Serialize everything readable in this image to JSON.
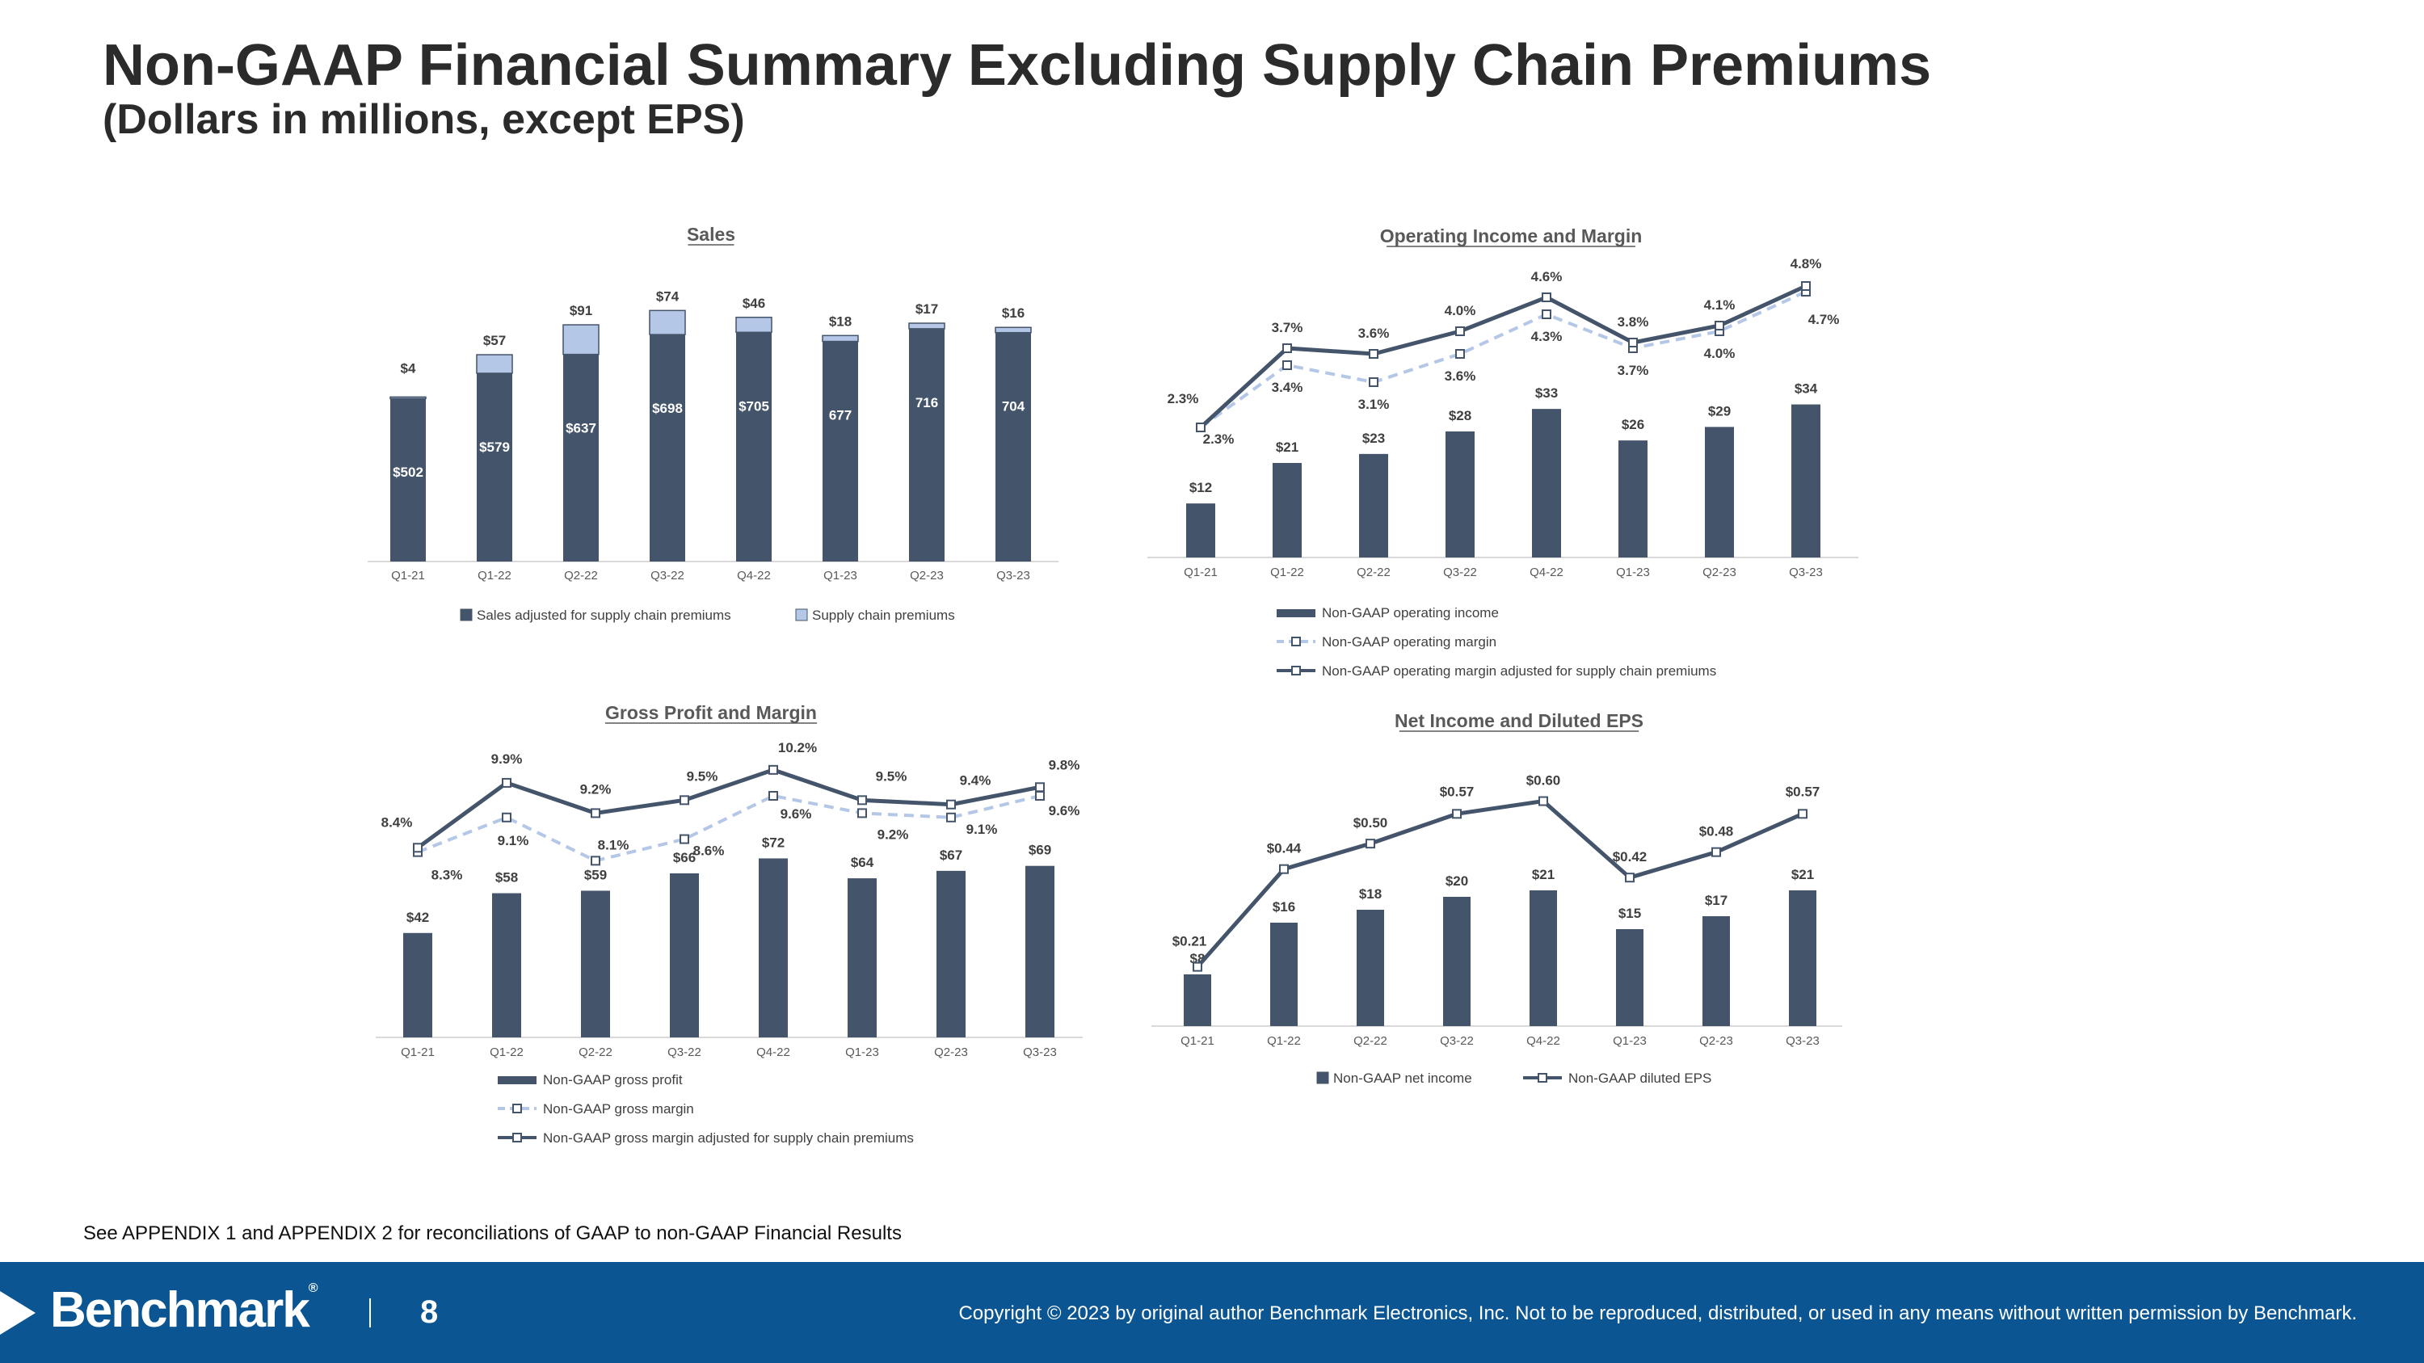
{
  "page": {
    "title": "Non-GAAP Financial Summary Excluding Supply Chain Premiums",
    "subtitle": "(Dollars in millions, except EPS)",
    "footnote": "See APPENDIX 1 and APPENDIX 2 for reconciliations of GAAP to non-GAAP Financial Results",
    "footer": {
      "logo": "Benchmark",
      "logo_mark": "®",
      "page_number": "8",
      "copyright": "Copyright © 2023 by original author Benchmark Electronics, Inc. Not to be reproduced, distributed, or used in any means without written permission by Benchmark."
    },
    "colors": {
      "navy": "#44546a",
      "light_blue": "#b4c7e7",
      "footer_blue": "#0b5592"
    }
  },
  "chart_data": [
    {
      "id": "sales",
      "type": "bar",
      "stacked": true,
      "title": "Sales",
      "categories": [
        "Q1-21",
        "Q1-22",
        "Q2-22",
        "Q3-22",
        "Q4-22",
        "Q1-23",
        "Q2-23",
        "Q3-23"
      ],
      "series": [
        {
          "name": "Sales adjusted for supply chain premiums",
          "values": [
            502,
            579,
            637,
            698,
            705,
            677,
            716,
            704
          ],
          "labels": [
            "$502",
            "$579",
            "$637",
            "$698",
            "$705",
            "677",
            "716",
            "704"
          ],
          "color": "#44546a"
        },
        {
          "name": "Supply chain premiums",
          "values": [
            4,
            57,
            91,
            74,
            46,
            18,
            17,
            16
          ],
          "labels": [
            "$4",
            "$57",
            "$91",
            "$74",
            "$46",
            "$18",
            "$17",
            "$16"
          ],
          "color": "#b4c7e7"
        }
      ],
      "ylim": [
        0,
        820
      ],
      "legend": "bottom"
    },
    {
      "id": "opinc",
      "type": "bar+line",
      "title": "Operating Income and Margin",
      "categories": [
        "Q1-21",
        "Q1-22",
        "Q2-22",
        "Q3-22",
        "Q4-22",
        "Q1-23",
        "Q2-23",
        "Q3-23"
      ],
      "bars": {
        "name": "Non-GAAP operating income",
        "values": [
          12,
          21,
          23,
          28,
          33,
          26,
          29,
          34
        ],
        "labels": [
          "$12",
          "$21",
          "$23",
          "$28",
          "$33",
          "$26",
          "$29",
          "$34"
        ]
      },
      "lines": [
        {
          "name": "Non-GAAP operating margin",
          "values": [
            2.3,
            3.4,
            3.1,
            3.6,
            4.3,
            3.7,
            4.0,
            4.7
          ],
          "labels": [
            "2.3%",
            "3.4%",
            "3.1%",
            "3.6%",
            "4.3%",
            "3.7%",
            "4.0%",
            "4.7%"
          ],
          "style": "dashed"
        },
        {
          "name": "Non-GAAP operating margin adjusted for supply chain premiums",
          "values": [
            2.3,
            3.7,
            3.6,
            4.0,
            4.6,
            3.8,
            4.1,
            4.8
          ],
          "labels": [
            "2.3%",
            "3.7%",
            "3.6%",
            "4.0%",
            "4.6%",
            "3.8%",
            "4.1%",
            "4.8%"
          ],
          "style": "solid"
        }
      ],
      "bar_ylim": [
        0,
        70
      ],
      "line_ylim": [
        0,
        5
      ],
      "legend": "bottom"
    },
    {
      "id": "gross",
      "type": "bar+line",
      "title": "Gross Profit and Margin",
      "categories": [
        "Q1-21",
        "Q1-22",
        "Q2-22",
        "Q3-22",
        "Q4-22",
        "Q1-23",
        "Q2-23",
        "Q3-23"
      ],
      "bars": {
        "name": "Non-GAAP gross profit",
        "values": [
          42,
          58,
          59,
          66,
          72,
          64,
          67,
          69
        ],
        "labels": [
          "$42",
          "$58",
          "$59",
          "$66",
          "$72",
          "$64",
          "$67",
          "$69"
        ]
      },
      "lines": [
        {
          "name": "Non-GAAP gross margin",
          "values": [
            8.3,
            9.1,
            8.1,
            8.6,
            9.6,
            9.2,
            9.1,
            9.6
          ],
          "labels": [
            "8.3%",
            "9.1%",
            "8.1%",
            "8.6%",
            "9.6%",
            "9.2%",
            "9.1%",
            "9.6%"
          ],
          "style": "dashed"
        },
        {
          "name": "Non-GAAP gross margin adjusted for supply chain premiums",
          "values": [
            8.4,
            9.9,
            9.2,
            9.5,
            10.2,
            9.5,
            9.4,
            9.8
          ],
          "labels": [
            "8.4%",
            "9.9%",
            "9.2%",
            "9.5%",
            "10.2%",
            "9.5%",
            "9.4%",
            "9.8%"
          ],
          "style": "solid"
        }
      ],
      "bar_ylim": [
        0,
        130
      ],
      "line_ylim": [
        4,
        11
      ],
      "legend": "bottom"
    },
    {
      "id": "netinc",
      "type": "bar+line",
      "title": "Net Income and Diluted EPS",
      "categories": [
        "Q1-21",
        "Q1-22",
        "Q2-22",
        "Q3-22",
        "Q4-22",
        "Q1-23",
        "Q2-23",
        "Q3-23"
      ],
      "bars": {
        "name": "Non-GAAP net income",
        "values": [
          8,
          16,
          18,
          20,
          21,
          15,
          17,
          21
        ],
        "labels": [
          "$8",
          "$16",
          "$18",
          "$20",
          "$21",
          "$15",
          "$17",
          "$21"
        ]
      },
      "lines": [
        {
          "name": "Non-GAAP diluted EPS",
          "values": [
            0.21,
            0.44,
            0.5,
            0.57,
            0.6,
            0.42,
            0.48,
            0.57
          ],
          "labels": [
            "$0.21",
            "$0.44",
            "$0.50",
            "$0.57",
            "$0.60",
            "$0.42",
            "$0.48",
            "$0.57"
          ],
          "style": "solid"
        }
      ],
      "bar_ylim": [
        0,
        42
      ],
      "line_ylim": [
        0.08,
        0.66
      ],
      "legend": "bottom"
    }
  ]
}
